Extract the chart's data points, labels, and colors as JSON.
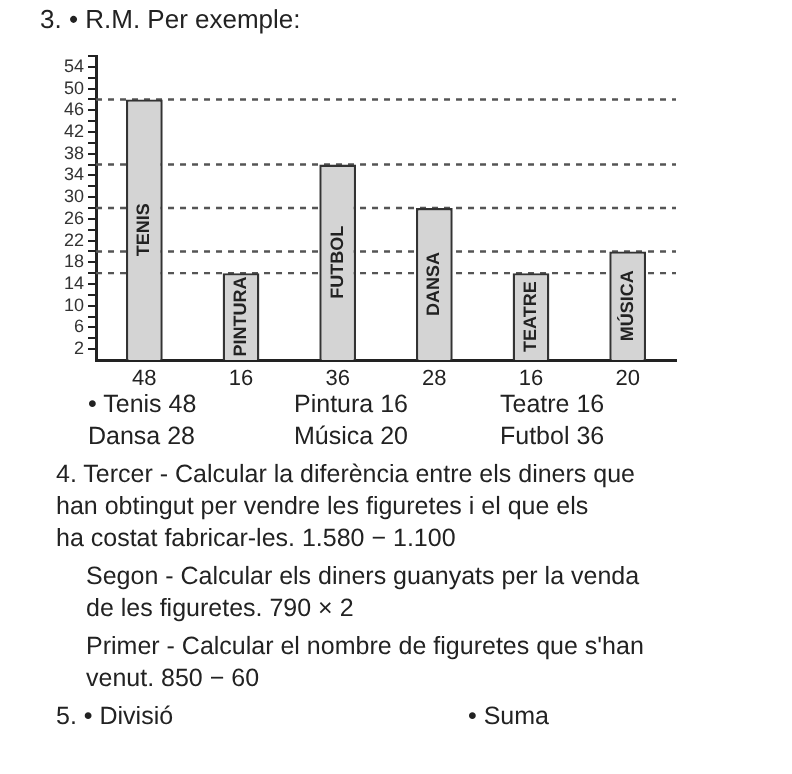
{
  "chart_data": {
    "type": "bar",
    "title": "3. • R.M. Per exemple:",
    "categories": [
      "TENIS",
      "PINTURA",
      "FUTBOL",
      "DANSA",
      "TEATRE",
      "MÚSICA"
    ],
    "values": [
      48,
      16,
      36,
      28,
      16,
      20
    ],
    "color": "#d4d4d4",
    "data_labels": true,
    "ylim": [
      0,
      56
    ],
    "yticks": [
      {
        "value": 2,
        "label": "2"
      },
      {
        "value": 4,
        "label": null
      },
      {
        "value": 6,
        "label": "6"
      },
      {
        "value": 8,
        "label": null
      },
      {
        "value": 10,
        "label": "10"
      },
      {
        "value": 12,
        "label": null
      },
      {
        "value": 14,
        "label": "14"
      },
      {
        "value": 16,
        "label": null
      },
      {
        "value": 18,
        "label": "18"
      },
      {
        "value": 20,
        "label": null
      },
      {
        "value": 22,
        "label": "22"
      },
      {
        "value": 24,
        "label": null
      },
      {
        "value": 26,
        "label": "26"
      },
      {
        "value": 28,
        "label": null
      },
      {
        "value": 30,
        "label": "30"
      },
      {
        "value": 32,
        "label": null
      },
      {
        "value": 34,
        "label": "34"
      },
      {
        "value": 36,
        "label": null
      },
      {
        "value": 38,
        "label": "38"
      },
      {
        "value": 40,
        "label": null
      },
      {
        "value": 42,
        "label": "42"
      },
      {
        "value": 44,
        "label": null
      },
      {
        "value": 46,
        "label": "46"
      },
      {
        "value": 48,
        "label": null
      },
      {
        "value": 50,
        "label": "50"
      },
      {
        "value": 52,
        "label": null
      },
      {
        "value": 54,
        "label": "54"
      },
      {
        "value": 56,
        "label": null
      }
    ],
    "grid": false,
    "legend": false,
    "ref_lines": [
      {
        "axis": "y",
        "value": 48,
        "line_style": "dashed",
        "color": "#555555"
      },
      {
        "axis": "y",
        "value": 36,
        "line_style": "dashed",
        "color": "#555555"
      },
      {
        "axis": "y",
        "value": 28,
        "line_style": "dashed",
        "color": "#555555"
      },
      {
        "axis": "y",
        "value": 20,
        "line_style": "dashed",
        "color": "#555555"
      },
      {
        "axis": "y",
        "value": 16,
        "line_style": "dashed",
        "color": "#555555"
      }
    ],
    "annotations": [
      "• Tenis 48\tPintura 16\tTeatre 16\nDansa 28\tMúsica 20\tFutbol 36",
      "4. Tercer - Calcular la diferència entre els diners que\nhan obtingut per vendre les figuretes i el que els\nha costat fabricar-les. 1.580 − 1.100",
      "Segon - Calcular els diners guanyats per la venda\nde les figuretes. 790 × 2",
      "Primer - Calcular el nombre de figuretes que s'han\nvenut. 850 − 60",
      "5. • Divisió\t\t• Suma"
    ]
  }
}
